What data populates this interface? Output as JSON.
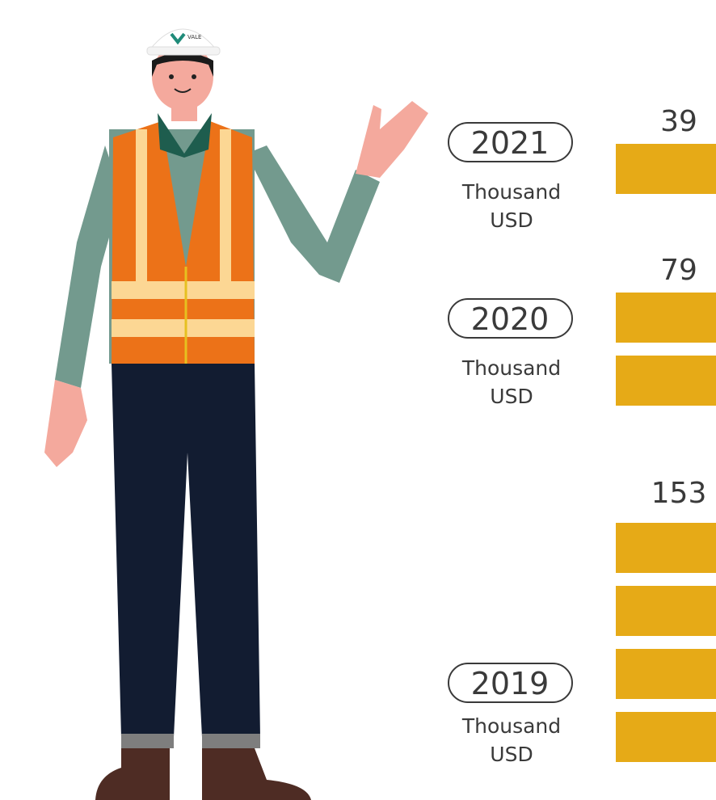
{
  "logo": "VALE",
  "items": [
    {
      "year": "2021",
      "unit": [
        "Thousand",
        "USD"
      ],
      "value": 39
    },
    {
      "year": "2020",
      "unit": [
        "Thousand",
        "USD"
      ],
      "value": 79
    },
    {
      "year": "2019",
      "unit": [
        "Thousand",
        "USD"
      ],
      "value": 153
    }
  ]
}
